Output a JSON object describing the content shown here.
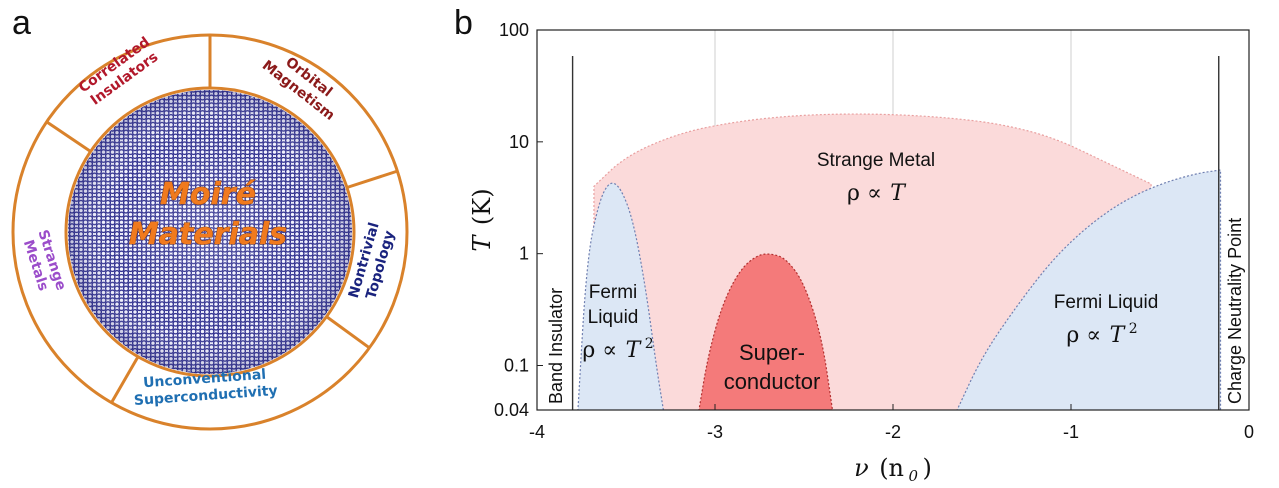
{
  "panel_a": {
    "label": "a",
    "center": {
      "line1": "Moiré",
      "line2": "Materials"
    },
    "segments": [
      {
        "lines": [
          "Correlated",
          "Insulators"
        ],
        "color": "#b2182b"
      },
      {
        "lines": [
          "Orbital",
          "Magnetism"
        ],
        "color": "#8b1a1a"
      },
      {
        "lines": [
          "Nontrivial",
          "Topology"
        ],
        "color": "#1a237e"
      },
      {
        "lines": [
          "Unconventional",
          "Superconductivity"
        ],
        "color": "#1f6fb2"
      },
      {
        "lines": [
          "Strange",
          "Metals"
        ],
        "color": "#9b4dca"
      }
    ],
    "ring_color": "#d9822b",
    "lattice_color": "#2b2b8c"
  },
  "panel_b": {
    "label": "b",
    "xlabel_main": "ν",
    "xlabel_unit": "(n",
    "xlabel_sub": "0",
    "xlabel_close": ")",
    "ylabel_main": "T",
    "ylabel_unit": "(K)",
    "regions": {
      "strange_metal": {
        "name": "Strange Metal",
        "law_rho": "ρ ∝",
        "law_var": "T"
      },
      "fermi_left": {
        "name_line1": "Fermi",
        "name_line2": "Liquid",
        "law_rho": "ρ ∝",
        "law_var": "T",
        "law_exp": "2"
      },
      "superconductor": {
        "line1": "Super-",
        "line2": "conductor"
      },
      "fermi_right": {
        "name": "Fermi Liquid",
        "law_rho": "ρ ∝",
        "law_var": "T",
        "law_exp": "2"
      },
      "band_insulator": "Band Insulator",
      "cnp": "Charge Neutrality Point"
    },
    "colors": {
      "strange_metal": "#fbdada",
      "fermi_liquid": "#dce7f5",
      "superconductor": "#f47a7a"
    }
  },
  "chart_data": {
    "type": "area",
    "title": "",
    "xlabel": "ν (n0)",
    "ylabel": "T (K)",
    "xlim": [
      -4,
      0
    ],
    "ylim": [
      0.04,
      100
    ],
    "yscale": "log",
    "x_ticks": [
      "-4",
      "-3",
      "-2",
      "-1",
      "0"
    ],
    "y_ticks": [
      "0.04",
      "0.1",
      "1",
      "10",
      "100"
    ],
    "grid": "vertical",
    "series": [
      {
        "name": "Strange Metal",
        "x": [
          -3.68,
          -3.5,
          -3.2,
          -2.9,
          -2.6,
          -2.3,
          -2.0,
          -1.7,
          -1.4,
          -1.1,
          -0.8,
          -0.55
        ],
        "values": [
          4.0,
          7.5,
          12.0,
          15.0,
          17.0,
          17.8,
          17.6,
          16.5,
          14.5,
          11.0,
          6.5,
          4.2
        ]
      },
      {
        "name": "Fermi Liquid",
        "x": [
          -3.77,
          -3.72,
          -3.65,
          -3.59,
          -3.53,
          -3.46,
          -3.39,
          -3.33,
          -3.29
        ],
        "values": [
          0.04,
          0.9,
          3.0,
          4.5,
          3.9,
          2.0,
          0.5,
          0.1,
          0.04
        ]
      },
      {
        "name": "Superconductor",
        "x": [
          -3.09,
          -3.04,
          -2.96,
          -2.86,
          -2.76,
          -2.68,
          -2.6,
          -2.5,
          -2.4,
          -2.34
        ],
        "values": [
          0.04,
          0.12,
          0.35,
          0.72,
          0.98,
          1.0,
          0.9,
          0.55,
          0.18,
          0.04
        ]
      },
      {
        "name": "Fermi Liquid",
        "x": [
          -1.64,
          -1.5,
          -1.3,
          -1.1,
          -0.9,
          -0.7,
          -0.5,
          -0.3,
          -0.16
        ],
        "values": [
          0.04,
          0.12,
          0.35,
          0.9,
          1.8,
          3.0,
          4.2,
          5.2,
          5.6
        ]
      }
    ],
    "vertical_lines": [
      {
        "x": -3.8,
        "label": "Band Insulator"
      },
      {
        "x": -0.17,
        "label": "Charge Neutrality Point"
      }
    ]
  }
}
